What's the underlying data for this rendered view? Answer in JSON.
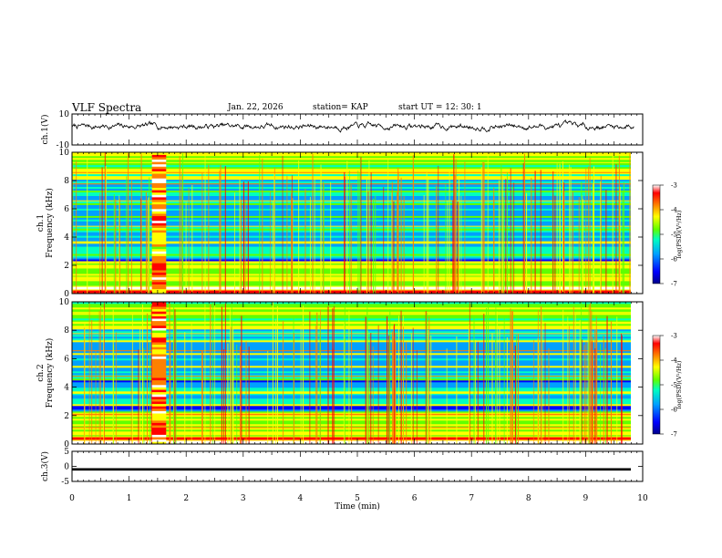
{
  "header": {
    "title": "VLF Spectra",
    "date": "Jan. 22, 2026",
    "station": "station= KAP",
    "start": "start  UT  =   12: 30: 1"
  },
  "chart_data": [
    {
      "type": "line",
      "name": "ch1-waveform",
      "ylabel": "ch.1(V)",
      "ylim": [
        -10,
        10
      ],
      "yticks": [
        "10",
        "-10"
      ],
      "xlim": [
        0,
        10
      ],
      "note": "continuous noisy voltage trace hovering near +2 V"
    },
    {
      "type": "heatmap",
      "name": "ch1-spectrogram",
      "ylabel": "ch.1\nFrequency  (kHz)",
      "ylim": [
        0,
        10
      ],
      "yticks": [
        "0",
        "2",
        "4",
        "6",
        "8",
        "10"
      ],
      "xlim": [
        0,
        10
      ],
      "colorbar": {
        "label": "log(PSD)(V²/Hz)",
        "range": [
          -7,
          -3
        ],
        "ticks": [
          "-3",
          "-4",
          "-5",
          "-6",
          "-7"
        ]
      },
      "broadband_burst_min": [
        1.4,
        1.65
      ]
    },
    {
      "type": "heatmap",
      "name": "ch2-spectrogram",
      "ylabel": "ch.2\nFrequency  (kHz)",
      "ylim": [
        0,
        10
      ],
      "yticks": [
        "0",
        "2",
        "4",
        "6",
        "8",
        "10"
      ],
      "xlim": [
        0,
        10
      ],
      "colorbar": {
        "label": "log(PSD)(V²/Hz)",
        "range": [
          -7,
          -3
        ],
        "ticks": [
          "-3",
          "-4",
          "-5",
          "-6",
          "-7"
        ]
      },
      "broadband_burst_min": [
        1.4,
        1.65
      ]
    },
    {
      "type": "line",
      "name": "ch3-waveform",
      "ylabel": "ch.3(V)",
      "ylim": [
        -5,
        5
      ],
      "yticks": [
        "5",
        "0",
        "-5"
      ],
      "xlim": [
        0,
        10
      ],
      "note": "flat thick trace at about -1 V"
    }
  ],
  "x_axis": {
    "label": "Time  (min)",
    "ticks": [
      "0",
      "1",
      "2",
      "3",
      "4",
      "5",
      "6",
      "7",
      "8",
      "9",
      "10"
    ]
  },
  "colors": {
    "scale": [
      "#00008b",
      "#0000ff",
      "#00a0ff",
      "#00ffc0",
      "#60ff00",
      "#ffff00",
      "#ff8000",
      "#ff0000",
      "#ffffff"
    ]
  }
}
